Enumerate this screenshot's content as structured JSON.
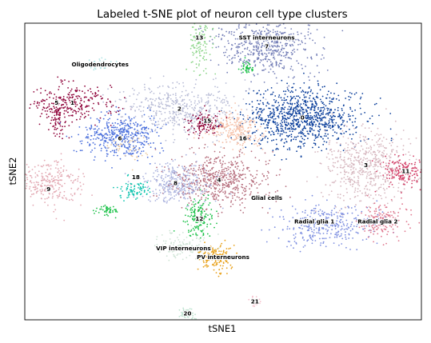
{
  "chart_data": {
    "type": "scatter",
    "title": "Labeled t-SNE plot of neuron cell type clusters",
    "xlabel": "tSNE1",
    "ylabel": "tSNE2",
    "xlim": [
      -50,
      50
    ],
    "ylim": [
      -50,
      50
    ],
    "grid": false,
    "legend": "none",
    "seed": 7,
    "clusters": [
      {
        "label": "0",
        "color": "#0b3f9b",
        "n": 900,
        "blobs": [
          [
            20,
            18,
            8,
            5.5
          ]
        ]
      },
      {
        "label": "1",
        "color": "#8e0038",
        "n": 260,
        "blobs": [
          [
            -38,
            23,
            6,
            4
          ]
        ]
      },
      {
        "label": "2",
        "color": "#b8bcd6",
        "n": 480,
        "blobs": [
          [
            -11,
            21,
            9,
            4.5
          ]
        ]
      },
      {
        "label": "3",
        "color": "#d7b8c0",
        "n": 550,
        "blobs": [
          [
            36,
            2,
            6,
            7
          ]
        ]
      },
      {
        "label": "4",
        "color": "#b7707f",
        "n": 560,
        "blobs": [
          [
            -1,
            -3,
            7,
            5
          ]
        ]
      },
      {
        "label": "5",
        "color": "#8e0038",
        "n": 70,
        "blobs": [
          [
            -42,
            18,
            1.2,
            3
          ]
        ]
      },
      {
        "label": "6",
        "color": "#4a6fdc",
        "n": 430,
        "blobs": [
          [
            -26,
            12,
            5,
            4
          ]
        ]
      },
      {
        "label": "7",
        "color": "#7680b8",
        "n": 520,
        "blobs": [
          [
            11,
            42,
            7,
            5
          ]
        ]
      },
      {
        "label": "8",
        "color": "#aab2de",
        "n": 300,
        "blobs": [
          [
            -12,
            -4,
            5,
            4
          ]
        ]
      },
      {
        "label": "9",
        "color": "#e3aab4",
        "n": 280,
        "blobs": [
          [
            -44,
            -4,
            5,
            4
          ]
        ]
      },
      {
        "label": "10",
        "color": "#f5c0a8",
        "n": 160,
        "blobs": [
          [
            2,
            15,
            4,
            3
          ]
        ]
      },
      {
        "label": "11",
        "color": "#d4426a",
        "n": 170,
        "blobs": [
          [
            46,
            0,
            3,
            3
          ]
        ]
      },
      {
        "label": "12",
        "color": "#1ec24a",
        "n": 150,
        "blobs": [
          [
            -6,
            -15,
            2,
            4
          ]
        ]
      },
      {
        "label": "13",
        "color": "#8fd68c",
        "n": 130,
        "blobs": [
          [
            -6,
            44,
            1.8,
            6
          ]
        ]
      },
      {
        "label": "14",
        "color": "#ffffff",
        "n": 0,
        "blobs": [
          [
            0,
            0,
            0,
            0
          ]
        ]
      },
      {
        "label": "15",
        "color": "#8e0038",
        "n": 110,
        "blobs": [
          [
            -5,
            16,
            2,
            2
          ]
        ]
      },
      {
        "label": "16",
        "color": "#f5c0a8",
        "n": 90,
        "blobs": [
          [
            5,
            12,
            2.5,
            2.5
          ]
        ]
      },
      {
        "label": "17",
        "color": "#e9c9a0",
        "n": 40,
        "blobs": [
          [
            -23,
            8,
            3,
            2.5
          ]
        ]
      },
      {
        "label": "18",
        "color": "#10c4b0",
        "n": 80,
        "blobs": [
          [
            -22,
            -6,
            2.2,
            1.8
          ]
        ]
      },
      {
        "label": "19",
        "color": "#1ec24a",
        "n": 50,
        "blobs": [
          [
            -29,
            -13,
            1.5,
            1
          ]
        ]
      },
      {
        "label": "20",
        "color": "#bde3cf",
        "n": 60,
        "blobs": [
          [
            -9,
            -48,
            1.2,
            1
          ]
        ]
      },
      {
        "label": "21",
        "color": "#f5c0cc",
        "n": 25,
        "blobs": [
          [
            8,
            -44,
            0.8,
            0.8
          ]
        ]
      },
      {
        "label": "SST interneurons",
        "color": "#1ec24a",
        "n": 40,
        "blobs": [
          [
            6,
            35,
            0.8,
            1.2
          ]
        ]
      },
      {
        "label": "Oligodendrocytes",
        "color": "#aee3e3",
        "n": 60,
        "blobs": [
          [
            -31,
            36,
            1.8,
            1.2
          ]
        ]
      },
      {
        "label": "Glial cells",
        "color": "#ffffff",
        "n": 0,
        "blobs": [
          [
            0,
            0,
            0,
            0
          ]
        ]
      },
      {
        "label": "Radial glia 1",
        "color": "#7c8ee0",
        "n": 320,
        "blobs": [
          [
            26,
            -18,
            7,
            4
          ]
        ]
      },
      {
        "label": "Radial glia 2",
        "color": "#e0788f",
        "n": 160,
        "blobs": [
          [
            40,
            -17,
            3.5,
            3
          ]
        ]
      },
      {
        "label": "VIP interneurons",
        "color": "#cfe4d6",
        "n": 120,
        "blobs": [
          [
            -10,
            -25,
            4,
            2.5
          ]
        ]
      },
      {
        "label": "PV interneurons",
        "color": "#e8a11a",
        "n": 140,
        "blobs": [
          [
            -2,
            -29,
            2.5,
            3
          ]
        ]
      }
    ],
    "annotations": [
      {
        "text": "0",
        "x": 20,
        "y": 18
      },
      {
        "text": "1",
        "x": -38,
        "y": 23
      },
      {
        "text": "2",
        "x": -11,
        "y": 21
      },
      {
        "text": "3",
        "x": 36,
        "y": 2
      },
      {
        "text": "4",
        "x": -1,
        "y": -3
      },
      {
        "text": "5",
        "x": -42,
        "y": 23
      },
      {
        "text": "6",
        "x": -26,
        "y": 11
      },
      {
        "text": "7",
        "x": 11,
        "y": 42
      },
      {
        "text": "8",
        "x": -12,
        "y": -4
      },
      {
        "text": "9",
        "x": -44,
        "y": -6
      },
      {
        "text": "11",
        "x": 46,
        "y": 0
      },
      {
        "text": "12",
        "x": -6,
        "y": -16
      },
      {
        "text": "13",
        "x": -6,
        "y": 45
      },
      {
        "text": "15",
        "x": -4,
        "y": 17
      },
      {
        "text": "16",
        "x": 5,
        "y": 11
      },
      {
        "text": "18",
        "x": -22,
        "y": -2
      },
      {
        "text": "20",
        "x": -9,
        "y": -48
      },
      {
        "text": "21",
        "x": 8,
        "y": -44
      },
      {
        "text": "SST interneurons",
        "x": 11,
        "y": 45
      },
      {
        "text": "Oligodendrocytes",
        "x": -31,
        "y": 36
      },
      {
        "text": "Glial cells",
        "x": 11,
        "y": -9
      },
      {
        "text": "Radial glia 1",
        "x": 23,
        "y": -17
      },
      {
        "text": "Radial glia 2",
        "x": 39,
        "y": -17
      },
      {
        "text": "VIP interneurons",
        "x": -10,
        "y": -26
      },
      {
        "text": "PV interneurons",
        "x": 0,
        "y": -29
      }
    ]
  }
}
